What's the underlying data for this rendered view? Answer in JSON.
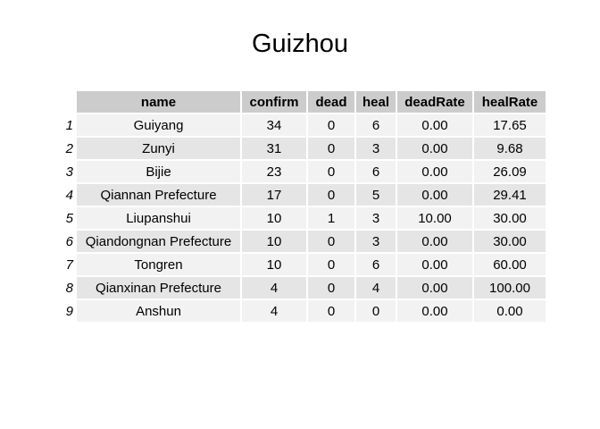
{
  "chart_data": {
    "type": "table",
    "title": "Guizhou",
    "columns": [
      "name",
      "confirm",
      "dead",
      "heal",
      "deadRate",
      "healRate"
    ],
    "row_labels": [
      "1",
      "2",
      "3",
      "4",
      "5",
      "6",
      "7",
      "8",
      "9"
    ],
    "rows": [
      [
        "Guiyang",
        "34",
        "0",
        "6",
        "0.00",
        "17.65"
      ],
      [
        "Zunyi",
        "31",
        "0",
        "3",
        "0.00",
        "9.68"
      ],
      [
        "Bijie",
        "23",
        "0",
        "6",
        "0.00",
        "26.09"
      ],
      [
        "Qiannan Prefecture",
        "17",
        "0",
        "5",
        "0.00",
        "29.41"
      ],
      [
        "Liupanshui",
        "10",
        "1",
        "3",
        "10.00",
        "30.00"
      ],
      [
        "Qiandongnan Prefecture",
        "10",
        "0",
        "3",
        "0.00",
        "30.00"
      ],
      [
        "Tongren",
        "10",
        "0",
        "6",
        "0.00",
        "60.00"
      ],
      [
        "Qianxinan Prefecture",
        "4",
        "0",
        "4",
        "0.00",
        "100.00"
      ],
      [
        "Anshun",
        "4",
        "0",
        "0",
        "0.00",
        "0.00"
      ]
    ],
    "colors": {
      "header_bg": "#cccccc",
      "row_odd_bg": "#f2f2f2",
      "row_even_bg": "#e5e5e5"
    }
  }
}
